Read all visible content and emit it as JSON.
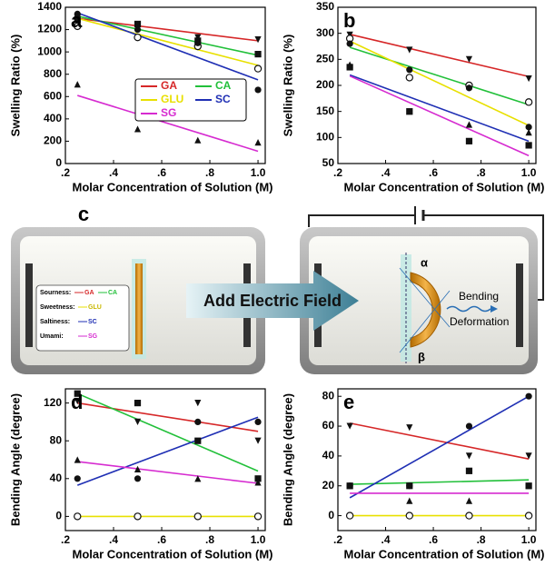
{
  "chart_data": [
    {
      "type": "scatter",
      "label": "a",
      "xlabel": "Molar Concentration of Solution (M)",
      "ylabel": "Swelling Ratio (%)",
      "x": [
        0.25,
        0.5,
        0.75,
        1.0
      ],
      "fit_x": [
        0.25,
        1.0
      ],
      "xlim": [
        0.2,
        1.03
      ],
      "xticks": [
        {
          "value": 0.2,
          "label": ".2"
        },
        {
          "value": 0.4,
          "label": ".4"
        },
        {
          "value": 0.6,
          "label": ".6"
        },
        {
          "value": 0.8,
          "label": ".8"
        },
        {
          "value": 1.0,
          "label": "1.0"
        }
      ],
      "ylim": [
        0,
        1400
      ],
      "yticks": [
        0,
        200,
        400,
        600,
        800,
        1000,
        1200,
        1400
      ],
      "legend": "center",
      "series": [
        {
          "name": "GA",
          "color": "#d62728",
          "marker": "triangle-down",
          "values": [
            1300,
            1240,
            1130,
            1110
          ],
          "fit": [
            1300,
            1100
          ]
        },
        {
          "name": "CA",
          "color": "#22c03a",
          "marker": "square",
          "values": [
            1290,
            1250,
            1100,
            980
          ],
          "fit": [
            1320,
            970
          ]
        },
        {
          "name": "GLU",
          "color": "#e8e000",
          "marker": "circle-open",
          "values": [
            1230,
            1130,
            1050,
            850
          ],
          "fit": [
            1300,
            880
          ]
        },
        {
          "name": "SC",
          "color": "#1f2fb4",
          "marker": "circle",
          "values": [
            1340,
            1200,
            1080,
            660
          ],
          "fit": [
            1350,
            750
          ]
        },
        {
          "name": "SG",
          "color": "#d62bd0",
          "marker": "triangle-up",
          "values": [
            710,
            310,
            210,
            190
          ],
          "fit": [
            610,
            110
          ]
        }
      ]
    },
    {
      "type": "scatter",
      "label": "b",
      "xlabel": "Molar Concentration of Solution (M)",
      "ylabel": "Swelling Ratio (%)",
      "x": [
        0.25,
        0.5,
        0.75,
        1.0
      ],
      "fit_x": [
        0.25,
        1.0
      ],
      "xlim": [
        0.2,
        1.03
      ],
      "xticks": [
        {
          "value": 0.2,
          "label": ".2"
        },
        {
          "value": 0.4,
          "label": ".4"
        },
        {
          "value": 0.6,
          "label": ".6"
        },
        {
          "value": 0.8,
          "label": ".8"
        },
        {
          "value": 1.0,
          "label": "1.0"
        }
      ],
      "ylim": [
        50,
        350
      ],
      "yticks": [
        50,
        100,
        150,
        200,
        250,
        300,
        350
      ],
      "series": [
        {
          "color": "#d62728",
          "marker": "triangle-down",
          "values": [
            297,
            268,
            250,
            213
          ],
          "fit": [
            298,
            217
          ]
        },
        {
          "color": "#22c03a",
          "marker": "circle-open",
          "values": [
            290,
            215,
            200,
            168
          ],
          "fit": [
            273,
            163
          ]
        },
        {
          "color": "#e8e000",
          "marker": "circle",
          "values": [
            280,
            230,
            195,
            120
          ],
          "fit": [
            285,
            123
          ]
        },
        {
          "color": "#1f2fb4",
          "marker": "triangle-up",
          "values": [
            240,
            150,
            125,
            110
          ],
          "fit": [
            220,
            93
          ]
        },
        {
          "color": "#d62bd0",
          "marker": "square",
          "values": [
            235,
            150,
            93,
            85
          ],
          "fit": [
            218,
            65
          ]
        }
      ]
    },
    {
      "type": "scatter",
      "label": "d",
      "xlabel": "Molar Concentration of Solution (M)",
      "ylabel": "Bending Angle (degree)",
      "x": [
        0.25,
        0.5,
        0.75,
        1.0
      ],
      "fit_x": [
        0.25,
        1.0
      ],
      "xlim": [
        0.2,
        1.03
      ],
      "xticks": [
        {
          "value": 0.2,
          "label": ".2"
        },
        {
          "value": 0.4,
          "label": ".4"
        },
        {
          "value": 0.6,
          "label": ".6"
        },
        {
          "value": 0.8,
          "label": ".8"
        },
        {
          "value": 1.0,
          "label": "1.0"
        }
      ],
      "ylim": [
        -15,
        135
      ],
      "yticks": [
        0,
        40,
        80,
        120
      ],
      "series": [
        {
          "color": "#d62728",
          "marker": "triangle-down",
          "values": [
            122,
            100,
            120,
            80
          ],
          "fit": [
            120,
            90
          ]
        },
        {
          "color": "#22c03a",
          "marker": "square",
          "values": [
            130,
            120,
            80,
            40
          ],
          "fit": [
            130,
            48
          ]
        },
        {
          "color": "#e8e000",
          "marker": "circle-open",
          "values": [
            0,
            0,
            0,
            0
          ],
          "fit": [
            0,
            0
          ]
        },
        {
          "color": "#1f2fb4",
          "marker": "circle",
          "values": [
            40,
            40,
            100,
            100
          ],
          "fit": [
            33,
            105
          ]
        },
        {
          "color": "#d62bd0",
          "marker": "triangle-up",
          "values": [
            60,
            50,
            40,
            36
          ],
          "fit": [
            58,
            35
          ]
        }
      ]
    },
    {
      "type": "scatter",
      "label": "e",
      "xlabel": "Molar Concentration of Solution (M)",
      "ylabel": "Bending Angle (degree)",
      "x": [
        0.25,
        0.5,
        0.75,
        1.0
      ],
      "fit_x": [
        0.25,
        1.0
      ],
      "xlim": [
        0.2,
        1.03
      ],
      "xticks": [
        {
          "value": 0.2,
          "label": ".2"
        },
        {
          "value": 0.4,
          "label": ".4"
        },
        {
          "value": 0.6,
          "label": ".6"
        },
        {
          "value": 0.8,
          "label": ".8"
        },
        {
          "value": 1.0,
          "label": "1.0"
        }
      ],
      "ylim": [
        -10,
        85
      ],
      "yticks": [
        0,
        20,
        40,
        60,
        80
      ],
      "series": [
        {
          "color": "#d62728",
          "marker": "triangle-down",
          "values": [
            60,
            59,
            40,
            40
          ],
          "fit": [
            62,
            38
          ]
        },
        {
          "color": "#22c03a",
          "marker": "square",
          "values": [
            20,
            20,
            30,
            20
          ],
          "fit": [
            21,
            24
          ]
        },
        {
          "color": "#e8e000",
          "marker": "circle-open",
          "values": [
            0,
            0,
            0,
            0
          ],
          "fit": [
            0,
            0
          ]
        },
        {
          "color": "#1f2fb4",
          "marker": "circle",
          "values": [
            20,
            20,
            60,
            80
          ],
          "fit": [
            12,
            80
          ]
        },
        {
          "color": "#d62bd0",
          "marker": "triangle-up",
          "values": [
            20,
            10,
            10,
            20
          ],
          "fit": [
            15,
            15
          ]
        }
      ]
    }
  ],
  "diagram": {
    "label": "c",
    "arrow": "Add Electric Field",
    "legend": [
      {
        "taste": "Sourness:",
        "items": [
          "GA",
          "CA"
        ]
      },
      {
        "taste": "Sweetness:",
        "items": [
          "GLU"
        ]
      },
      {
        "taste": "Saltiness:",
        "items": [
          "SC"
        ]
      },
      {
        "taste": "Umami:",
        "items": [
          "SG"
        ]
      }
    ],
    "angles": [
      "α",
      "β"
    ],
    "annotation": [
      "Bending",
      "Deformation"
    ]
  }
}
